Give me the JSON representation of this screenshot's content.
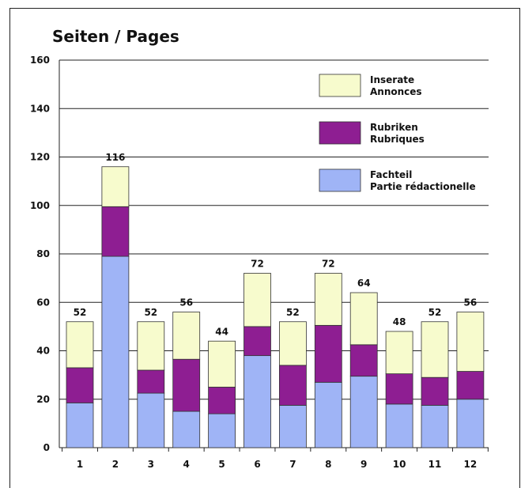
{
  "chart_data": {
    "type": "bar",
    "stacked": true,
    "title": "Seiten / Pages",
    "xlabel": "",
    "ylabel": "",
    "ylim": [
      0,
      160
    ],
    "yticks": [
      0,
      20,
      40,
      60,
      80,
      100,
      120,
      140,
      160
    ],
    "grid": true,
    "legend_position": "top-right",
    "categories": [
      "1",
      "2",
      "3",
      "4",
      "5",
      "6",
      "7",
      "8",
      "9",
      "10",
      "11",
      "12"
    ],
    "series": [
      {
        "name": "Fachteil Partie rédactionelle",
        "label_lines": [
          "Fachteil",
          "Partie rédactionelle"
        ],
        "color": "#9fb4f6",
        "values": [
          18.5,
          79,
          22.5,
          15,
          14,
          38,
          17.5,
          27,
          29.5,
          18,
          17.5,
          20
        ]
      },
      {
        "name": "Rubriken Rubriques",
        "label_lines": [
          "Rubriken",
          "Rubriques"
        ],
        "color": "#8e1e92",
        "values": [
          14.5,
          20.5,
          9.5,
          21.5,
          11,
          12,
          16.5,
          23.5,
          13,
          12.5,
          11.5,
          11.5
        ]
      },
      {
        "name": "Inserate Annonces",
        "label_lines": [
          "Inserate",
          "Annonces"
        ],
        "color": "#f7fbcd",
        "values": [
          19,
          16.5,
          20,
          19.5,
          19,
          22,
          18,
          21.5,
          21.5,
          17.5,
          23,
          24.5
        ]
      }
    ],
    "totals": [
      "52",
      "116",
      "52",
      "56",
      "44",
      "72",
      "52",
      "72",
      "64",
      "48",
      "52",
      "56"
    ]
  }
}
